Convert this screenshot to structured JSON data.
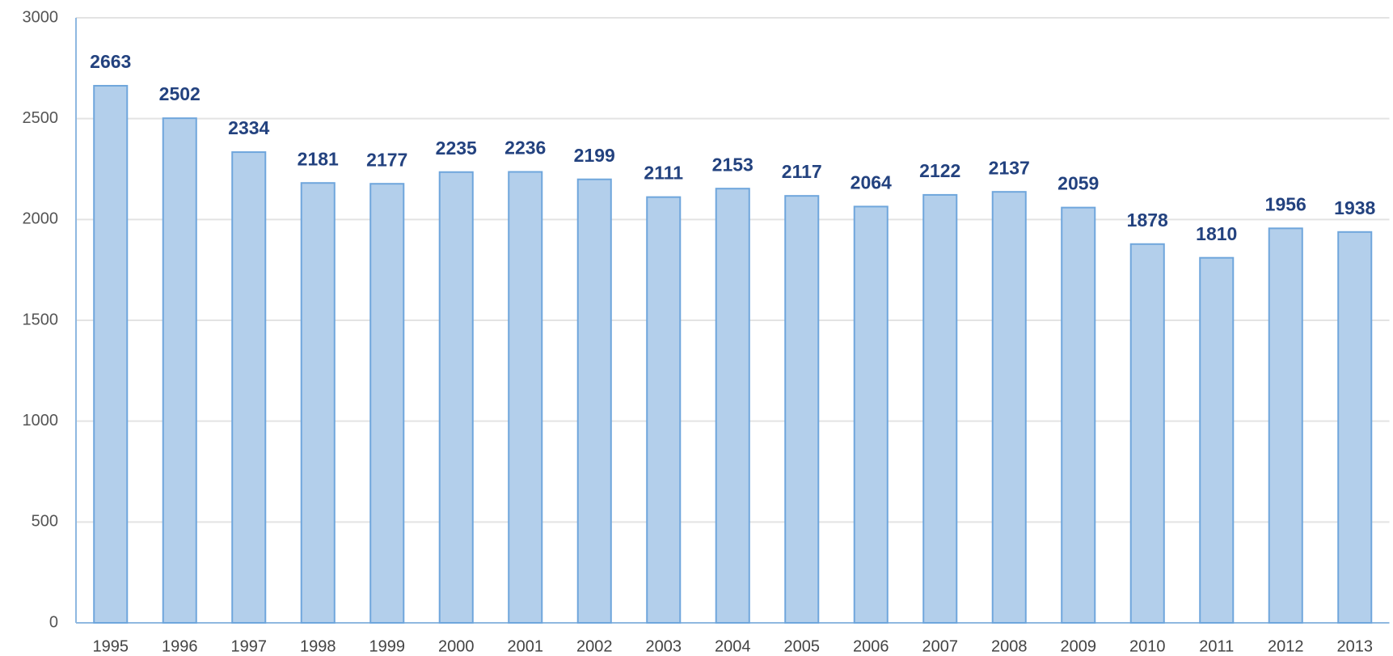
{
  "chart_data": {
    "type": "bar",
    "categories": [
      "1995",
      "1996",
      "1997",
      "1998",
      "1999",
      "2000",
      "2001",
      "2002",
      "2003",
      "2004",
      "2005",
      "2006",
      "2007",
      "2008",
      "2009",
      "2010",
      "2011",
      "2012",
      "2013"
    ],
    "values": [
      2663,
      2502,
      2334,
      2181,
      2177,
      2235,
      2236,
      2199,
      2111,
      2153,
      2117,
      2064,
      2122,
      2137,
      2059,
      1878,
      1810,
      1956,
      1938
    ],
    "color": "#b3cfeb",
    "ylim": [
      0,
      3000
    ],
    "yticks": [
      0,
      500,
      1000,
      1500,
      2000,
      2500,
      3000
    ],
    "grid": true
  }
}
